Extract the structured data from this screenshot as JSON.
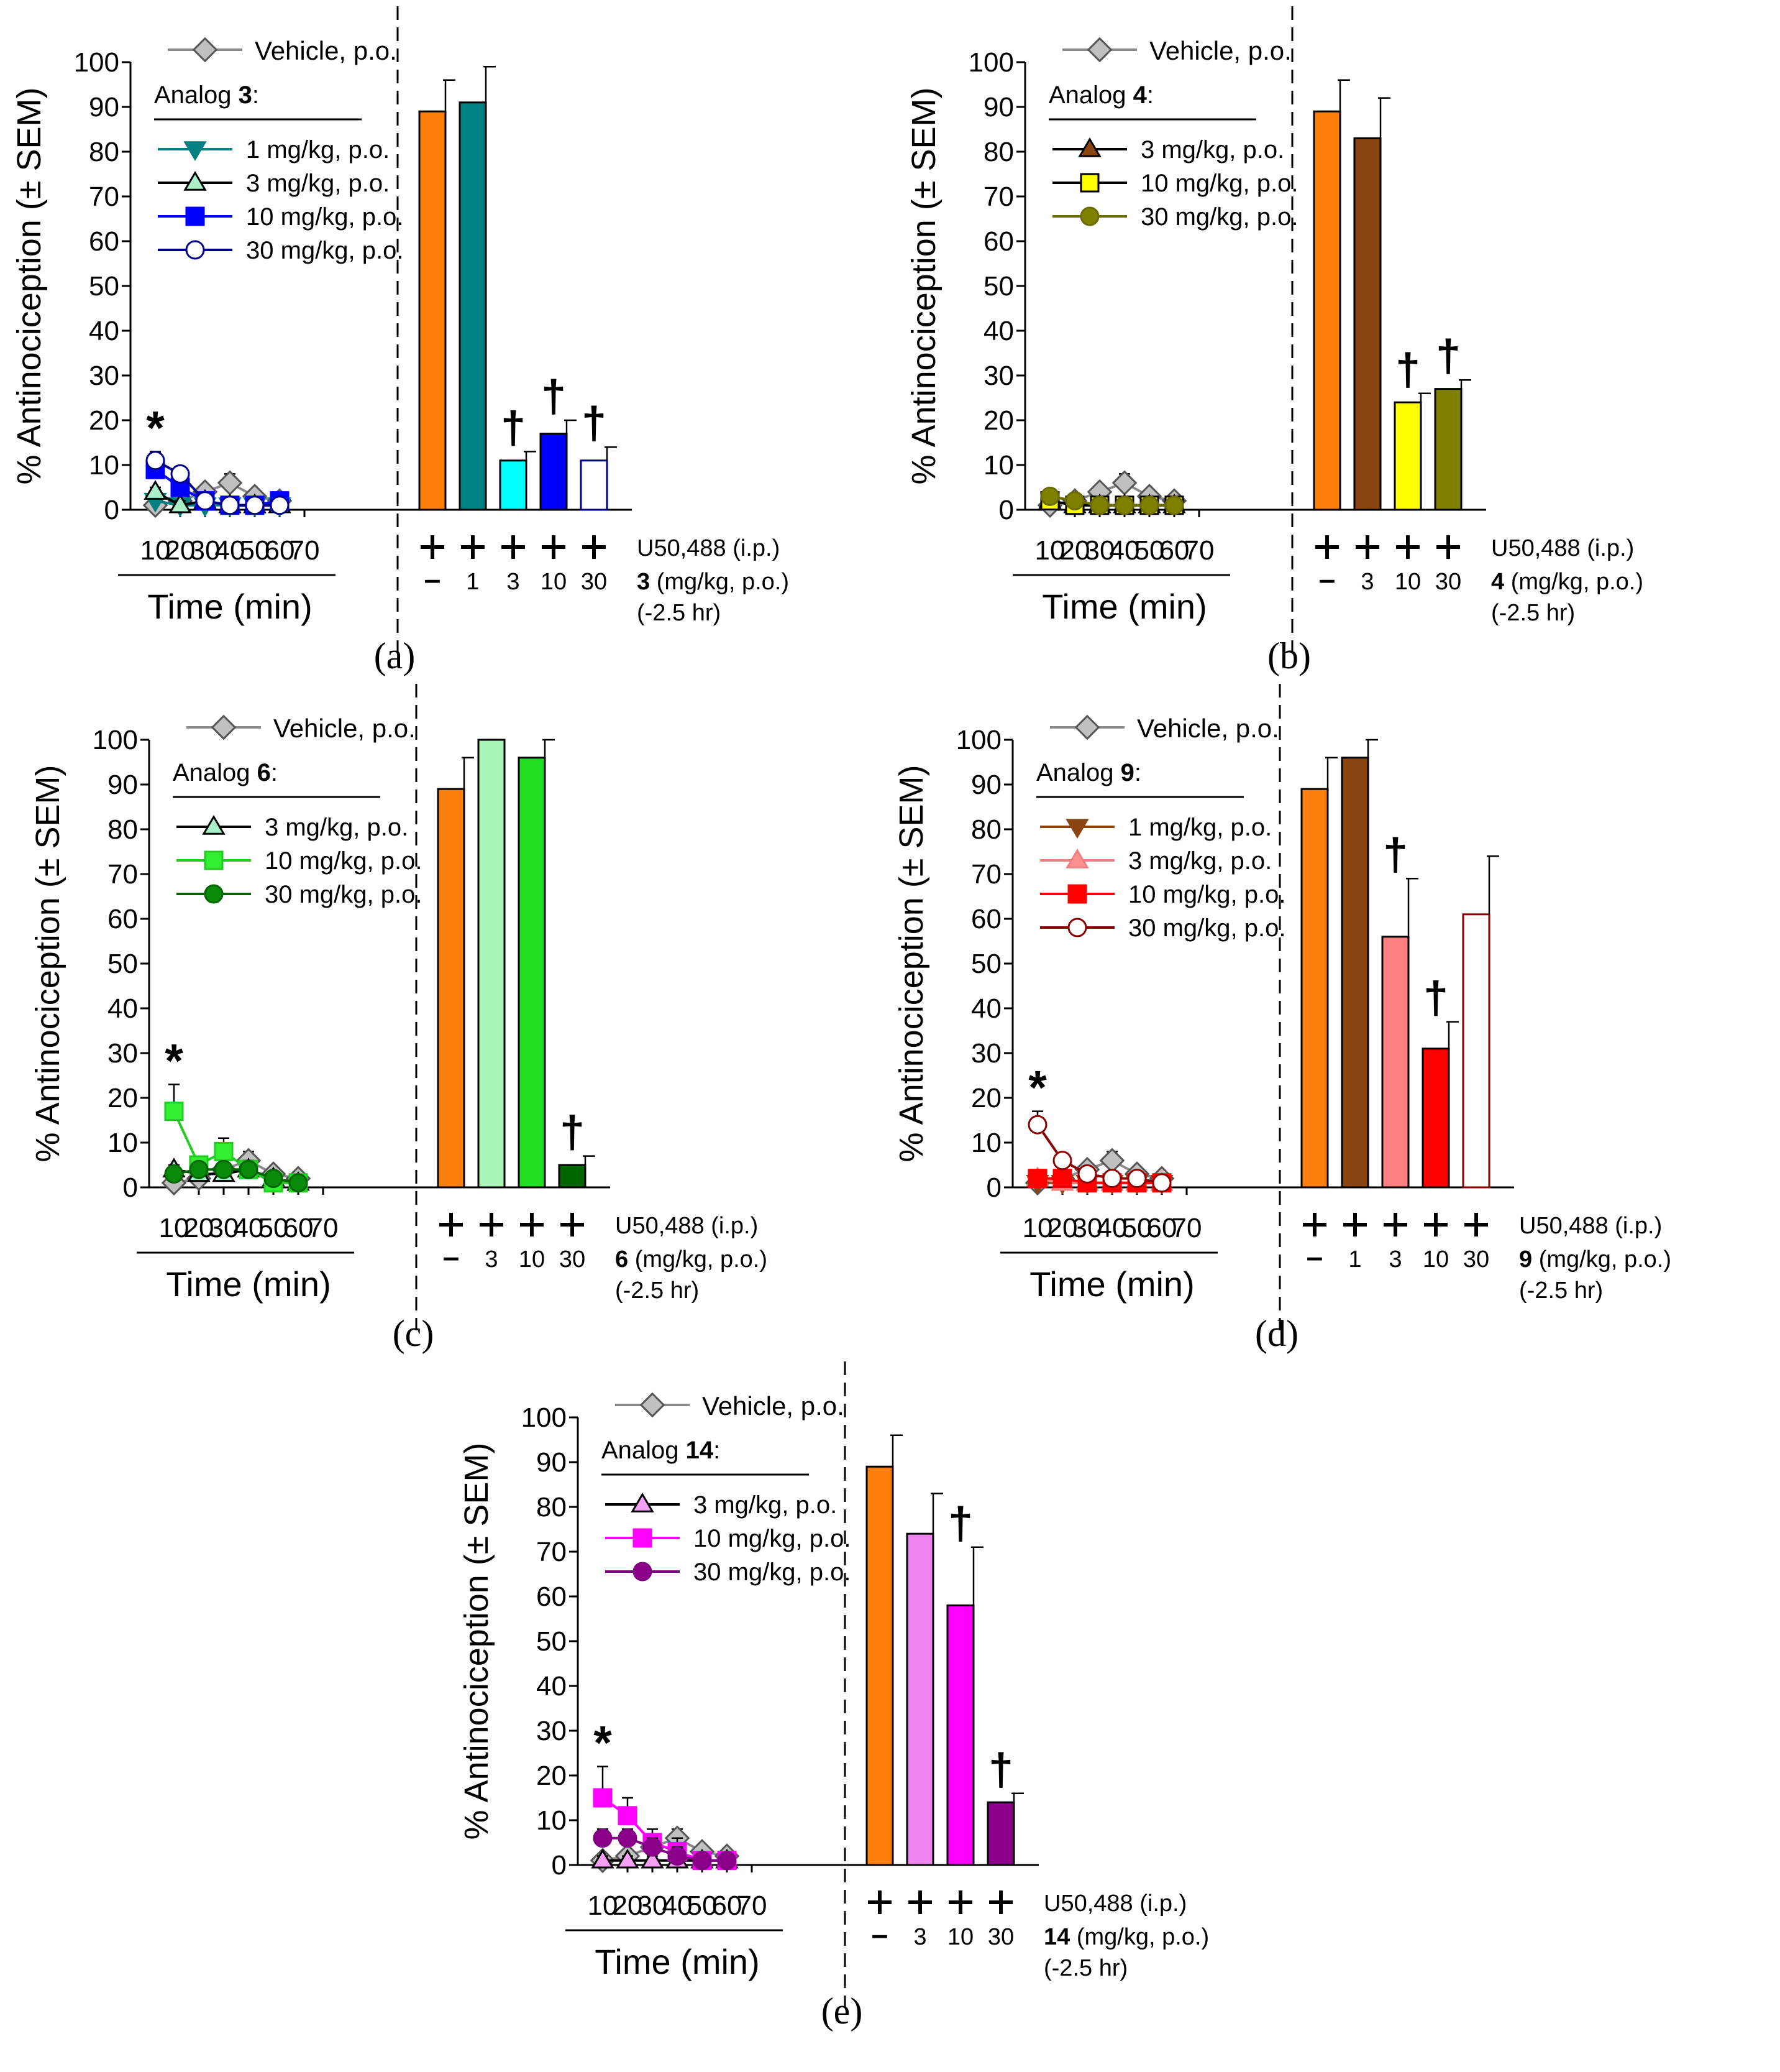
{
  "figure": {
    "y_axis_label": "% Antinociception (± SEM)",
    "x_axis_label": "Time (min)",
    "treatment_row_label": "U50,488 (i.p.)",
    "dose_unit_label": "(mg/kg, p.o.)",
    "pretreatment_time_label": "(-2.5 hr)",
    "vehicle_legend_label": "Vehicle, p.o.",
    "analog_prefix": "Analog",
    "plus_symbol": "+",
    "minus_symbol": "–",
    "significance_vs_vehicle": "*",
    "significance_vs_u50488": "†"
  },
  "colors": {
    "vehicle_marker": "#c0c0c0",
    "u50488_alone_bar": "#ff7f0e",
    "axis": "#000000"
  },
  "chart_data": [
    {
      "panel": "(a)",
      "type": "line+bar",
      "analog": "3",
      "ylim": [
        0,
        100
      ],
      "yticks": [
        0,
        10,
        20,
        30,
        40,
        50,
        60,
        70,
        80,
        90,
        100
      ],
      "xticks": [
        10,
        20,
        30,
        40,
        50,
        60,
        70
      ],
      "vehicle": {
        "name": "Vehicle, p.o.",
        "x": [
          10,
          20,
          30,
          40,
          50,
          60
        ],
        "y": [
          1,
          2,
          4,
          6,
          3,
          2
        ],
        "err": [
          1,
          1,
          1,
          2,
          1,
          1
        ]
      },
      "series": [
        {
          "name": "1 mg/kg, p.o.",
          "marker": "tri-down",
          "color": "#008080",
          "fill": "#008080",
          "x": [
            10,
            20,
            30,
            40,
            50,
            60
          ],
          "y": [
            2,
            1,
            1,
            1,
            1,
            1
          ],
          "err": [
            1,
            1,
            1,
            1,
            1,
            1
          ]
        },
        {
          "name": "3 mg/kg, p.o.",
          "marker": "tri-up",
          "color": "#000000",
          "fill": "#a9f0c8",
          "x": [
            10,
            20,
            30,
            40,
            50,
            60
          ],
          "y": [
            4,
            1,
            2,
            1,
            1,
            1
          ],
          "err": [
            1,
            1,
            1,
            1,
            1,
            1
          ]
        },
        {
          "name": "10 mg/kg, p.o.",
          "marker": "square",
          "color": "#0000ff",
          "fill": "#0000ff",
          "x": [
            10,
            20,
            30,
            40,
            50,
            60
          ],
          "y": [
            9,
            5,
            2,
            1,
            1,
            2
          ],
          "err": [
            2,
            1,
            1,
            1,
            1,
            1
          ]
        },
        {
          "name": "30 mg/kg, p.o.",
          "marker": "circle",
          "color": "#00008b",
          "fill": "#ffffff",
          "x": [
            10,
            20,
            30,
            40,
            50,
            60
          ],
          "y": [
            11,
            8,
            2,
            1,
            1,
            1
          ],
          "err": [
            2,
            1,
            1,
            1,
            1,
            1
          ]
        }
      ],
      "asterisk_at": [
        10
      ],
      "bars": {
        "u50488": [
          "+",
          "+",
          "+",
          "+",
          "+"
        ],
        "dose_labels": [
          "–",
          "1",
          "3",
          "10",
          "30"
        ],
        "values": [
          89,
          91,
          11,
          17,
          11
        ],
        "errors": [
          7,
          8,
          2,
          3,
          3
        ],
        "colors": [
          "#ff7f0e",
          "#008080",
          "#00ffff",
          "#0000ff",
          "#ffffff"
        ],
        "edges": [
          "#000000",
          "#000000",
          "#000000",
          "#000000",
          "#00008b"
        ],
        "dagger": [
          false,
          false,
          true,
          true,
          true
        ]
      }
    },
    {
      "panel": "(b)",
      "type": "line+bar",
      "analog": "4",
      "ylim": [
        0,
        100
      ],
      "yticks": [
        0,
        10,
        20,
        30,
        40,
        50,
        60,
        70,
        80,
        90,
        100
      ],
      "xticks": [
        10,
        20,
        30,
        40,
        50,
        60,
        70
      ],
      "vehicle": {
        "name": "Vehicle, p.o.",
        "x": [
          10,
          20,
          30,
          40,
          50,
          60
        ],
        "y": [
          1,
          2,
          4,
          6,
          3,
          2
        ],
        "err": [
          1,
          1,
          1,
          2,
          1,
          1
        ]
      },
      "series": [
        {
          "name": "3 mg/kg, p.o.",
          "marker": "tri-up",
          "color": "#000000",
          "fill": "#8b4513",
          "x": [
            10,
            20,
            30,
            40,
            50,
            60
          ],
          "y": [
            2,
            1,
            1,
            1,
            1,
            1
          ],
          "err": [
            1,
            1,
            1,
            1,
            1,
            1
          ]
        },
        {
          "name": "10 mg/kg, p.o.",
          "marker": "square",
          "color": "#000000",
          "fill": "#ffff00",
          "x": [
            10,
            20,
            30,
            40,
            50,
            60
          ],
          "y": [
            2,
            1,
            1,
            1,
            1,
            1
          ],
          "err": [
            1,
            1,
            1,
            1,
            1,
            1
          ]
        },
        {
          "name": "30 mg/kg, p.o.",
          "marker": "circle",
          "color": "#6b6b00",
          "fill": "#808000",
          "x": [
            10,
            20,
            30,
            40,
            50,
            60
          ],
          "y": [
            3,
            2,
            1,
            1,
            1,
            1
          ],
          "err": [
            1,
            1,
            1,
            1,
            1,
            1
          ]
        }
      ],
      "asterisk_at": [],
      "bars": {
        "u50488": [
          "+",
          "+",
          "+",
          "+"
        ],
        "dose_labels": [
          "–",
          "3",
          "10",
          "30"
        ],
        "values": [
          89,
          83,
          24,
          27
        ],
        "errors": [
          7,
          9,
          2,
          2
        ],
        "colors": [
          "#ff7f0e",
          "#8b4513",
          "#ffff00",
          "#808000"
        ],
        "edges": [
          "#000000",
          "#000000",
          "#000000",
          "#000000"
        ],
        "dagger": [
          false,
          false,
          true,
          true
        ]
      }
    },
    {
      "panel": "(c)",
      "type": "line+bar",
      "analog": "6",
      "ylim": [
        0,
        100
      ],
      "yticks": [
        0,
        10,
        20,
        30,
        40,
        50,
        60,
        70,
        80,
        90,
        100
      ],
      "xticks": [
        10,
        20,
        30,
        40,
        50,
        60,
        70
      ],
      "vehicle": {
        "name": "Vehicle, p.o.",
        "x": [
          10,
          20,
          30,
          40,
          50,
          60
        ],
        "y": [
          1,
          2,
          4,
          6,
          3,
          2
        ],
        "err": [
          1,
          1,
          1,
          2,
          1,
          1
        ]
      },
      "series": [
        {
          "name": "3 mg/kg, p.o.",
          "marker": "tri-up",
          "color": "#000000",
          "fill": "#a9f0c8",
          "x": [
            10,
            20,
            30,
            40,
            50,
            60
          ],
          "y": [
            4,
            3,
            3,
            4,
            2,
            1
          ],
          "err": [
            1,
            1,
            2,
            2,
            1,
            1
          ]
        },
        {
          "name": "10 mg/kg, p.o.",
          "marker": "square",
          "color": "#22cc22",
          "fill": "#33ee33",
          "x": [
            10,
            20,
            30,
            40,
            50,
            60
          ],
          "y": [
            17,
            5,
            8,
            4,
            1,
            1
          ],
          "err": [
            6,
            1,
            3,
            2,
            1,
            1
          ]
        },
        {
          "name": "30 mg/kg, p.o.",
          "marker": "circle",
          "color": "#006400",
          "fill": "#0a8a0a",
          "x": [
            10,
            20,
            30,
            40,
            50,
            60
          ],
          "y": [
            3,
            4,
            4,
            4,
            2,
            1
          ],
          "err": [
            1,
            1,
            1,
            1,
            1,
            1
          ]
        }
      ],
      "asterisk_at": [
        10
      ],
      "bars": {
        "u50488": [
          "+",
          "+",
          "+",
          "+"
        ],
        "dose_labels": [
          "–",
          "3",
          "10",
          "30"
        ],
        "values": [
          89,
          100,
          96,
          5
        ],
        "errors": [
          7,
          0,
          4,
          2
        ],
        "colors": [
          "#ff7f0e",
          "#a9f5b8",
          "#22dd22",
          "#006400"
        ],
        "edges": [
          "#000000",
          "#000000",
          "#000000",
          "#000000"
        ],
        "dagger": [
          false,
          false,
          false,
          true
        ]
      }
    },
    {
      "panel": "(d)",
      "type": "line+bar",
      "analog": "9",
      "ylim": [
        0,
        100
      ],
      "yticks": [
        0,
        10,
        20,
        30,
        40,
        50,
        60,
        70,
        80,
        90,
        100
      ],
      "xticks": [
        10,
        20,
        30,
        40,
        50,
        60,
        70
      ],
      "vehicle": {
        "name": "Vehicle, p.o.",
        "x": [
          10,
          20,
          30,
          40,
          50,
          60
        ],
        "y": [
          1,
          2,
          4,
          6,
          3,
          2
        ],
        "err": [
          1,
          1,
          1,
          2,
          1,
          1
        ]
      },
      "series": [
        {
          "name": "1 mg/kg, p.o.",
          "marker": "tri-down",
          "color": "#8b4513",
          "fill": "#8b4513",
          "x": [
            10,
            20,
            30,
            40,
            50,
            60
          ],
          "y": [
            1,
            1,
            1,
            1,
            1,
            1
          ],
          "err": [
            1,
            1,
            1,
            1,
            1,
            1
          ]
        },
        {
          "name": "3 mg/kg, p.o.",
          "marker": "tri-up",
          "color": "#f08080",
          "fill": "#ff9090",
          "x": [
            10,
            20,
            30,
            40,
            50,
            60
          ],
          "y": [
            2,
            1,
            1,
            1,
            1,
            1
          ],
          "err": [
            1,
            1,
            1,
            1,
            1,
            1
          ]
        },
        {
          "name": "10 mg/kg, p.o.",
          "marker": "square",
          "color": "#ff0000",
          "fill": "#ff0000",
          "x": [
            10,
            20,
            30,
            40,
            50,
            60
          ],
          "y": [
            2,
            2,
            1,
            1,
            1,
            1
          ],
          "err": [
            1,
            1,
            1,
            1,
            1,
            1
          ]
        },
        {
          "name": "30 mg/kg, p.o.",
          "marker": "circle",
          "color": "#8b0000",
          "fill": "#ffffff",
          "x": [
            10,
            20,
            30,
            40,
            50,
            60
          ],
          "y": [
            14,
            6,
            3,
            2,
            2,
            1
          ],
          "err": [
            3,
            1,
            1,
            1,
            1,
            1
          ]
        }
      ],
      "asterisk_at": [
        10
      ],
      "bars": {
        "u50488": [
          "+",
          "+",
          "+",
          "+",
          "+"
        ],
        "dose_labels": [
          "–",
          "1",
          "3",
          "10",
          "30"
        ],
        "values": [
          89,
          96,
          56,
          31,
          61
        ],
        "errors": [
          7,
          4,
          13,
          6,
          13
        ],
        "colors": [
          "#ff7f0e",
          "#8b4513",
          "#ff8080",
          "#ff0000",
          "#ffffff"
        ],
        "edges": [
          "#000000",
          "#000000",
          "#000000",
          "#000000",
          "#8b0000"
        ],
        "dagger": [
          false,
          false,
          true,
          true,
          false
        ]
      }
    },
    {
      "panel": "(e)",
      "type": "line+bar",
      "analog": "14",
      "ylim": [
        0,
        100
      ],
      "yticks": [
        0,
        10,
        20,
        30,
        40,
        50,
        60,
        70,
        80,
        90,
        100
      ],
      "xticks": [
        10,
        20,
        30,
        40,
        50,
        60,
        70
      ],
      "vehicle": {
        "name": "Vehicle, p.o.",
        "x": [
          10,
          20,
          30,
          40,
          50,
          60
        ],
        "y": [
          1,
          2,
          4,
          6,
          3,
          2
        ],
        "err": [
          1,
          1,
          1,
          2,
          1,
          1
        ]
      },
      "series": [
        {
          "name": "3 mg/kg, p.o.",
          "marker": "tri-up",
          "color": "#000000",
          "fill": "#f5a0f5",
          "x": [
            10,
            20,
            30,
            40,
            50,
            60
          ],
          "y": [
            1,
            1,
            1,
            1,
            1,
            1
          ],
          "err": [
            1,
            1,
            1,
            1,
            1,
            1
          ]
        },
        {
          "name": "10 mg/kg, p.o.",
          "marker": "square",
          "color": "#ff00ff",
          "fill": "#ff00ff",
          "x": [
            10,
            20,
            30,
            40,
            50,
            60
          ],
          "y": [
            15,
            11,
            5,
            3,
            1,
            1
          ],
          "err": [
            7,
            4,
            3,
            3,
            1,
            1
          ]
        },
        {
          "name": "30 mg/kg, p.o.",
          "marker": "circle",
          "color": "#800080",
          "fill": "#8b008b",
          "x": [
            10,
            20,
            30,
            40,
            50,
            60
          ],
          "y": [
            6,
            6,
            4,
            2,
            1,
            1
          ],
          "err": [
            2,
            2,
            2,
            2,
            1,
            1
          ]
        }
      ],
      "asterisk_at": [
        10
      ],
      "bars": {
        "u50488": [
          "+",
          "+",
          "+",
          "+"
        ],
        "dose_labels": [
          "–",
          "3",
          "10",
          "30"
        ],
        "values": [
          89,
          74,
          58,
          14
        ],
        "errors": [
          7,
          9,
          13,
          2
        ],
        "colors": [
          "#ff7f0e",
          "#ee82ee",
          "#ff00ff",
          "#8b008b"
        ],
        "edges": [
          "#000000",
          "#000000",
          "#000000",
          "#000000"
        ],
        "dagger": [
          false,
          false,
          true,
          true
        ]
      }
    }
  ]
}
